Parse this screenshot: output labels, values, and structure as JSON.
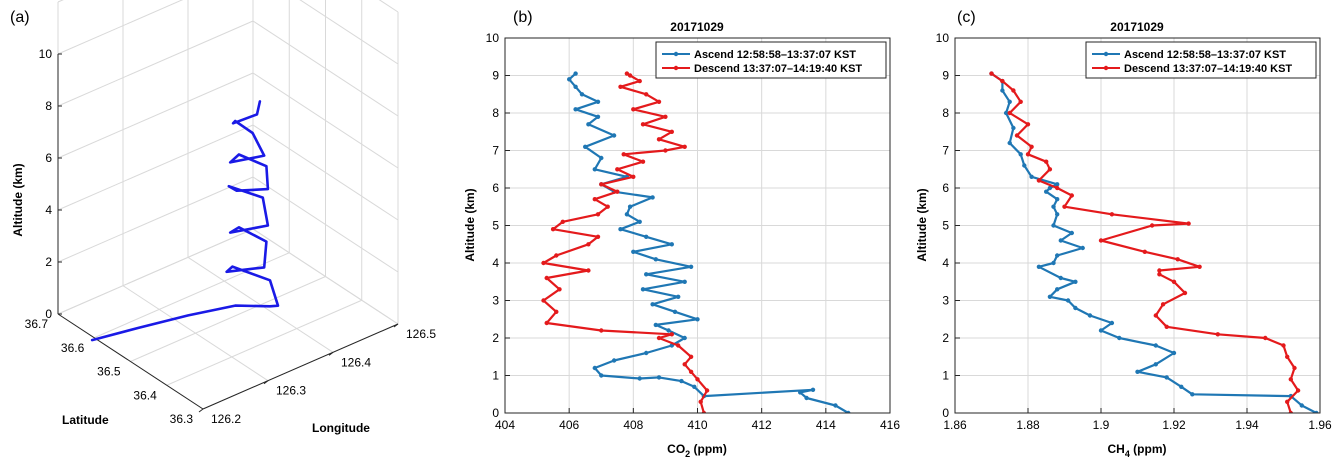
{
  "panels": {
    "a": {
      "label": "(a)"
    },
    "b": {
      "label": "(b)",
      "title": "20171029"
    },
    "c": {
      "label": "(c)",
      "title": "20171029"
    }
  },
  "chart_data": [
    {
      "type": "line3d",
      "panel": "a",
      "zlabel": "Altitude (km)",
      "ylabel": "Latitude",
      "xlabel": "Longitude",
      "xlim": [
        126.2,
        126.5
      ],
      "ylim": [
        36.3,
        36.7
      ],
      "zlim": [
        0,
        10
      ],
      "xticks": [
        "126.2",
        "126.3",
        "126.4",
        "126.5"
      ],
      "yticks": [
        "36.3",
        "36.4",
        "36.5",
        "36.6",
        "36.7"
      ],
      "zticks": [
        "0",
        "2",
        "4",
        "6",
        "8",
        "10"
      ],
      "grid": true,
      "color": "#1a1ae6",
      "series": [
        {
          "x": [
            126.18,
            126.24,
            126.3,
            126.35,
            126.37,
            126.36,
            126.37,
            126.34,
            126.32,
            126.35,
            126.37,
            126.35,
            126.32,
            126.35,
            126.37,
            126.34,
            126.33,
            126.35,
            126.37,
            126.35,
            126.32,
            126.35,
            126.36,
            126.35,
            126.33,
            126.35,
            126.36
          ],
          "y": [
            36.57,
            36.55,
            36.52,
            36.48,
            36.42,
            36.38,
            36.42,
            36.47,
            36.45,
            36.4,
            36.43,
            36.47,
            36.44,
            36.39,
            36.44,
            36.48,
            36.44,
            36.39,
            36.43,
            36.47,
            36.44,
            36.4,
            36.45,
            36.48,
            36.45,
            36.42,
            36.43
          ],
          "z": [
            0.4,
            0.4,
            0.5,
            0.7,
            1.0,
            1.5,
            2.0,
            2.4,
            2.6,
            2.9,
            3.4,
            3.8,
            4.2,
            4.6,
            5.0,
            5.4,
            5.7,
            6.0,
            6.3,
            6.6,
            6.9,
            7.2,
            7.5,
            7.8,
            8.2,
            8.6,
            8.9
          ]
        }
      ]
    },
    {
      "type": "line",
      "panel": "b",
      "title": "20171029",
      "xlabel_main": "CO",
      "xlabel_sub": "2",
      "xlabel_unit": " (ppm)",
      "ylabel": "Altitude (km)",
      "xlim": [
        404,
        416
      ],
      "ylim": [
        0,
        10
      ],
      "xticks": [
        "404",
        "406",
        "408",
        "410",
        "412",
        "414",
        "416"
      ],
      "yticks": [
        "0",
        "1",
        "2",
        "3",
        "4",
        "5",
        "6",
        "7",
        "8",
        "9",
        "10"
      ],
      "grid": true,
      "legend_position": "top-right",
      "series": [
        {
          "name": "Ascend 12:58:58–13:37:07 KST",
          "color": "#1f77b4",
          "x": [
            414.7,
            414.3,
            413.4,
            413.2,
            413.6,
            410.2,
            409.9,
            409.5,
            408.8,
            408.2,
            407.0,
            406.8,
            407.4,
            408.4,
            409.2,
            409.6,
            409.1,
            408.7,
            410.0,
            409.3,
            408.6,
            409.4,
            408.3,
            409.6,
            408.4,
            409.8,
            408.7,
            408.0,
            409.2,
            408.4,
            407.6,
            408.2,
            407.8,
            407.9,
            408.6,
            407.4,
            407.0,
            407.8,
            406.8,
            407.0,
            406.5,
            407.4,
            406.6,
            406.9,
            406.2,
            406.9,
            406.4,
            406.2,
            406.0,
            406.2
          ],
          "y": [
            0.0,
            0.2,
            0.4,
            0.55,
            0.62,
            0.45,
            0.7,
            0.85,
            0.95,
            0.92,
            1.0,
            1.2,
            1.4,
            1.6,
            1.8,
            2.0,
            2.2,
            2.35,
            2.5,
            2.7,
            2.9,
            3.1,
            3.3,
            3.5,
            3.7,
            3.9,
            4.1,
            4.3,
            4.5,
            4.7,
            4.9,
            5.1,
            5.3,
            5.5,
            5.75,
            5.9,
            6.1,
            6.3,
            6.5,
            6.8,
            7.1,
            7.4,
            7.7,
            7.9,
            8.1,
            8.3,
            8.5,
            8.7,
            8.9,
            9.05
          ]
        },
        {
          "name": "Descend 13:37:07–14:19:40 KST",
          "color": "#e41a1c",
          "x": [
            410.2,
            410.1,
            410.3,
            410.0,
            409.8,
            409.6,
            409.8,
            409.4,
            408.8,
            409.2,
            407.0,
            405.3,
            405.6,
            405.2,
            405.7,
            405.3,
            406.6,
            405.2,
            405.6,
            406.6,
            406.9,
            405.5,
            405.8,
            406.9,
            407.2,
            406.8,
            407.5,
            407.0,
            408.0,
            407.5,
            408.3,
            407.7,
            409.0,
            409.6,
            408.8,
            409.2,
            408.3,
            409.0,
            408.0,
            408.8,
            408.4,
            407.6,
            408.2,
            407.9,
            407.8
          ],
          "y": [
            0.0,
            0.3,
            0.6,
            0.9,
            1.1,
            1.3,
            1.5,
            1.8,
            2.0,
            2.1,
            2.2,
            2.4,
            2.7,
            3.0,
            3.3,
            3.6,
            3.8,
            4.0,
            4.2,
            4.5,
            4.7,
            4.9,
            5.1,
            5.3,
            5.5,
            5.7,
            5.9,
            6.1,
            6.3,
            6.5,
            6.7,
            6.9,
            7.0,
            7.1,
            7.3,
            7.5,
            7.7,
            7.9,
            8.1,
            8.3,
            8.5,
            8.7,
            8.85,
            9.0,
            9.05
          ]
        }
      ]
    },
    {
      "type": "line",
      "panel": "c",
      "title": "20171029",
      "xlabel_main": "CH",
      "xlabel_sub": "4",
      "xlabel_unit": " (ppm)",
      "ylabel": "Altitude (km)",
      "xlim": [
        1.86,
        1.96
      ],
      "ylim": [
        0,
        10
      ],
      "xticks": [
        "1.86",
        "1.88",
        "1.9",
        "1.92",
        "1.94",
        "1.96"
      ],
      "yticks": [
        "0",
        "1",
        "2",
        "3",
        "4",
        "5",
        "6",
        "7",
        "8",
        "9",
        "10"
      ],
      "grid": true,
      "legend_position": "top-right",
      "series": [
        {
          "name": "Ascend 12:58:58–13:37:07 KST",
          "color": "#1f77b4",
          "x": [
            1.959,
            1.955,
            1.952,
            1.925,
            1.922,
            1.918,
            1.91,
            1.915,
            1.92,
            1.915,
            1.905,
            1.9,
            1.903,
            1.897,
            1.893,
            1.891,
            1.886,
            1.888,
            1.893,
            1.889,
            1.883,
            1.887,
            1.888,
            1.895,
            1.889,
            1.892,
            1.887,
            1.888,
            1.887,
            1.888,
            1.885,
            1.886,
            1.888,
            1.881,
            1.879,
            1.878,
            1.875,
            1.876,
            1.874,
            1.875,
            1.873,
            1.873,
            1.87
          ],
          "y": [
            0.0,
            0.2,
            0.45,
            0.5,
            0.7,
            0.95,
            1.1,
            1.3,
            1.6,
            1.8,
            2.0,
            2.2,
            2.4,
            2.6,
            2.8,
            3.0,
            3.1,
            3.3,
            3.5,
            3.6,
            3.9,
            4.0,
            4.2,
            4.4,
            4.6,
            4.8,
            5.0,
            5.3,
            5.5,
            5.7,
            5.9,
            6.0,
            6.1,
            6.3,
            6.6,
            6.9,
            7.2,
            7.6,
            8.0,
            8.3,
            8.6,
            8.85,
            9.05
          ]
        },
        {
          "name": "Descend 13:37:07–14:19:40 KST",
          "color": "#e41a1c",
          "x": [
            1.952,
            1.951,
            1.954,
            1.952,
            1.953,
            1.951,
            1.95,
            1.945,
            1.932,
            1.918,
            1.915,
            1.917,
            1.923,
            1.92,
            1.916,
            1.916,
            1.927,
            1.921,
            1.912,
            1.9,
            1.914,
            1.924,
            1.903,
            1.89,
            1.892,
            1.888,
            1.883,
            1.886,
            1.885,
            1.88,
            1.881,
            1.877,
            1.88,
            1.875,
            1.878,
            1.876,
            1.873,
            1.87
          ],
          "y": [
            0.0,
            0.3,
            0.6,
            0.9,
            1.2,
            1.5,
            1.8,
            2.0,
            2.1,
            2.3,
            2.6,
            2.9,
            3.2,
            3.5,
            3.7,
            3.8,
            3.9,
            4.1,
            4.3,
            4.6,
            5.0,
            5.05,
            5.3,
            5.5,
            5.8,
            6.0,
            6.2,
            6.5,
            6.7,
            6.9,
            7.1,
            7.4,
            7.7,
            8.0,
            8.3,
            8.6,
            8.85,
            9.05
          ]
        }
      ]
    }
  ]
}
